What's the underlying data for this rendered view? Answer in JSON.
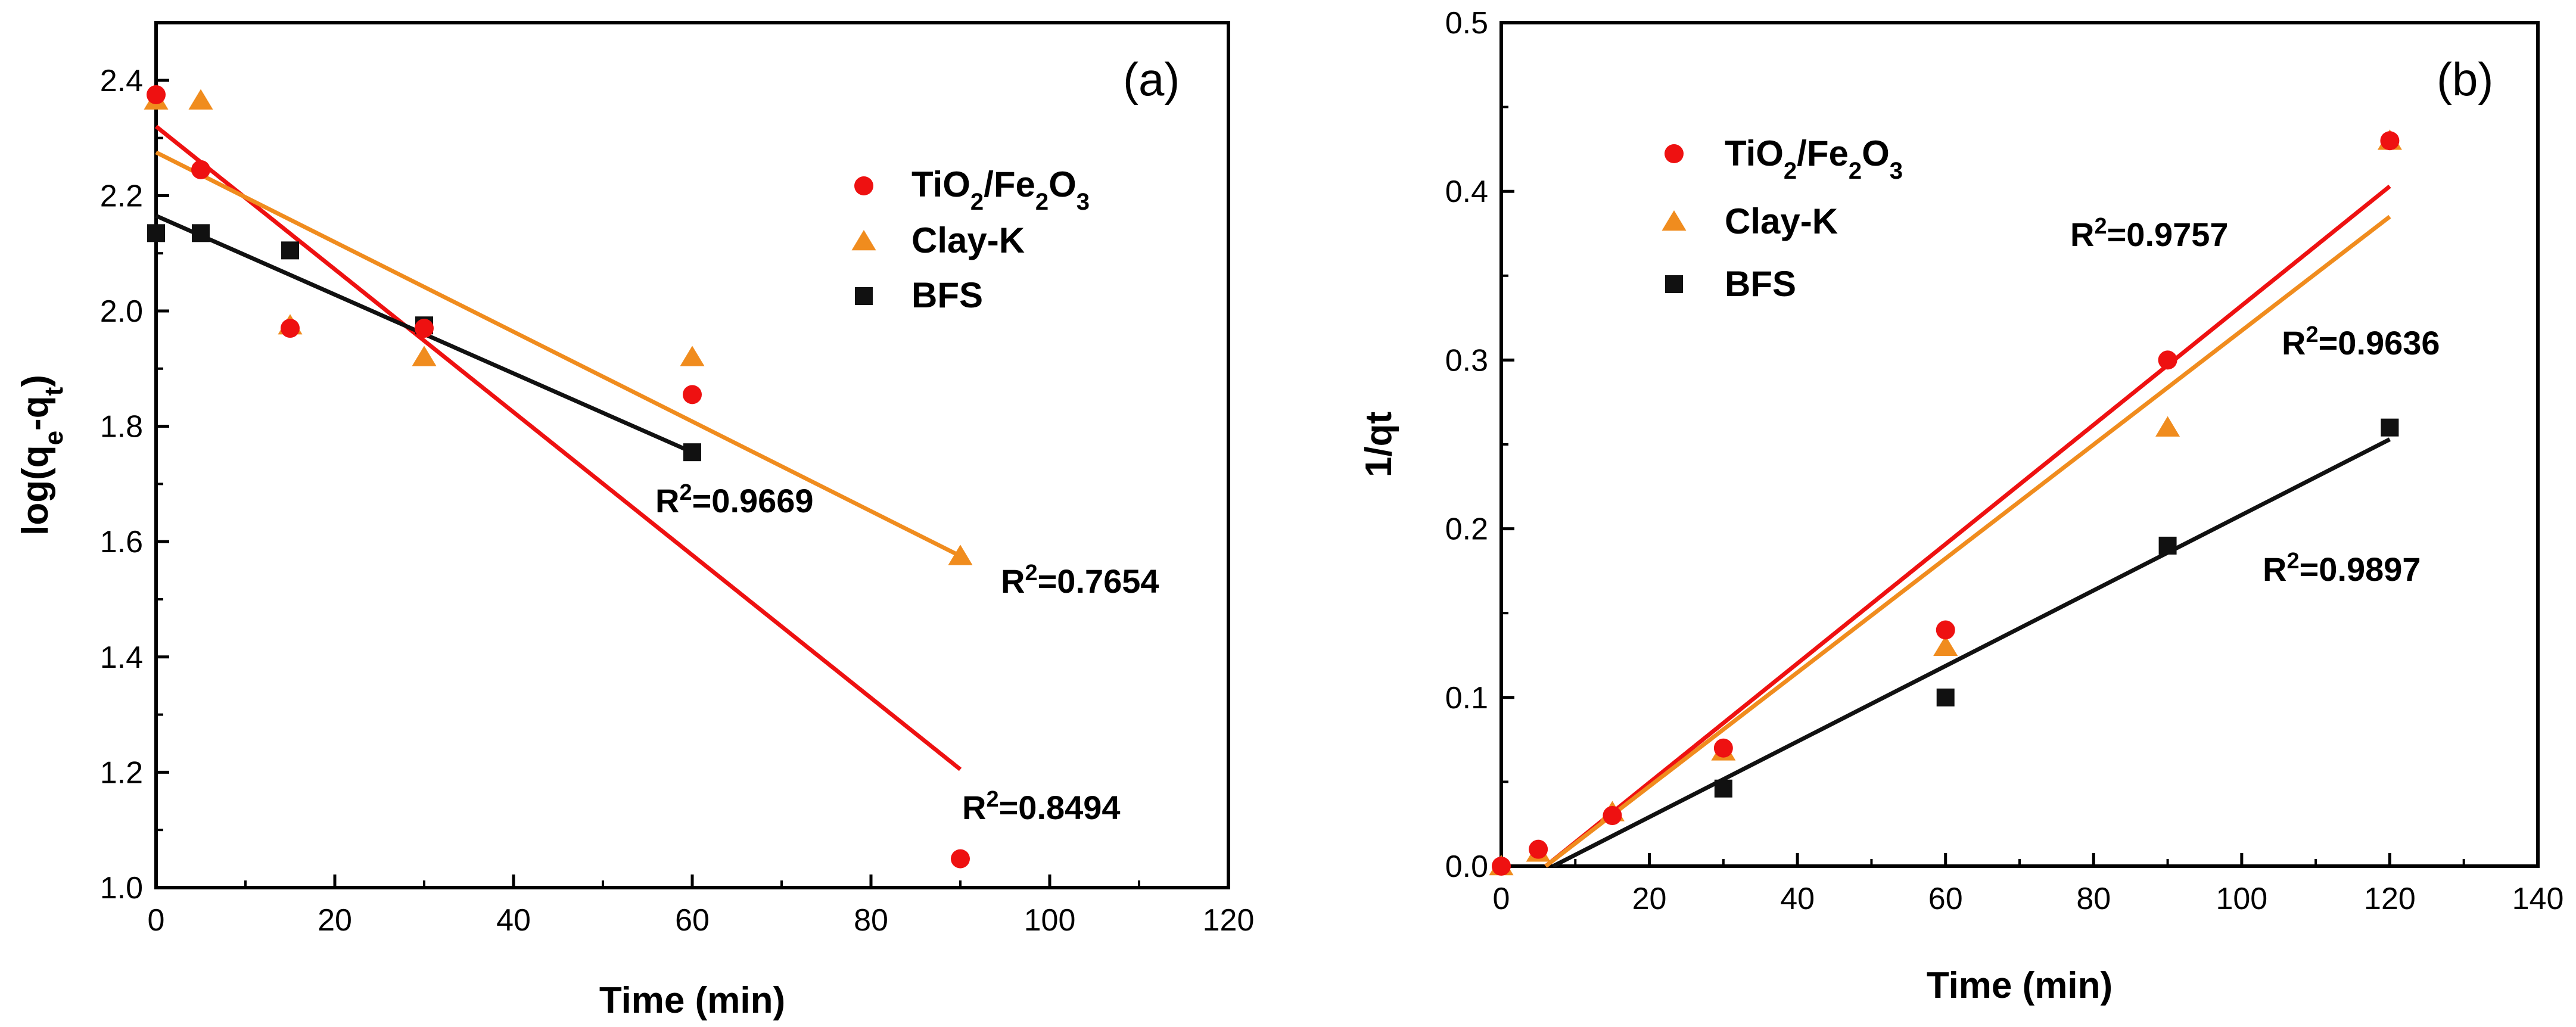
{
  "chart_data": [
    {
      "type": "scatter",
      "panel_label": "(a)",
      "xlabel": "Time (min)",
      "ylabel_parts": {
        "base": "log(q",
        "sub1": "e",
        "mid": "-q",
        "sub2": "t",
        "end": ")"
      },
      "xlim": [
        0,
        120
      ],
      "ylim": [
        1.0,
        2.5
      ],
      "xticks": [
        "0",
        "20",
        "40",
        "60",
        "80",
        "100",
        "120"
      ],
      "yticks": [
        "1.0",
        "1.2",
        "1.4",
        "1.6",
        "1.8",
        "2.0",
        "2.2",
        "2.4"
      ],
      "legend_position": "top-right",
      "series": [
        {
          "key": "tio2",
          "legend_parts": [
            "TiO",
            "2",
            "/Fe",
            "2",
            "O",
            "3"
          ],
          "color": "#ee1111",
          "marker": "circle",
          "points": [
            [
              0,
              2.375
            ],
            [
              5,
              2.245
            ],
            [
              15,
              1.97
            ],
            [
              30,
              1.97
            ],
            [
              60,
              1.855
            ],
            [
              90,
              1.05
            ]
          ],
          "fit": [
            [
              0,
              2.32
            ],
            [
              90,
              1.205
            ]
          ],
          "r2_label": "R²=0.8494",
          "r2_parts": {
            "pre": "R",
            "sup": "2",
            "post": "=0.8494"
          }
        },
        {
          "key": "clay",
          "legend": "Clay-K",
          "color": "#f08c1e",
          "marker": "triangle",
          "points": [
            [
              0,
              2.365
            ],
            [
              5,
              2.365
            ],
            [
              15,
              1.975
            ],
            [
              30,
              1.92
            ],
            [
              60,
              1.92
            ],
            [
              90,
              1.575
            ]
          ],
          "fit": [
            [
              0,
              2.275
            ],
            [
              90,
              1.575
            ]
          ],
          "r2_label": "R²=0.7654",
          "r2_parts": {
            "pre": "R",
            "sup": "2",
            "post": "=0.7654"
          }
        },
        {
          "key": "bfs",
          "legend": "BFS",
          "color": "#111111",
          "marker": "square",
          "points": [
            [
              0,
              2.135
            ],
            [
              5,
              2.135
            ],
            [
              15,
              2.105
            ],
            [
              30,
              1.975
            ],
            [
              60,
              1.755
            ]
          ],
          "fit": [
            [
              0,
              2.165
            ],
            [
              60,
              1.755
            ]
          ],
          "r2_label": "R²=0.9669",
          "r2_parts": {
            "pre": "R",
            "sup": "2",
            "post": "=0.9669"
          }
        }
      ]
    },
    {
      "type": "scatter",
      "panel_label": "(b)",
      "xlabel": "Time (min)",
      "ylabel": "1/qt",
      "xlim": [
        0,
        140
      ],
      "ylim": [
        0.0,
        0.5
      ],
      "xticks": [
        "0",
        "20",
        "40",
        "60",
        "80",
        "100",
        "120",
        "140"
      ],
      "yticks": [
        "0.0",
        "0.1",
        "0.2",
        "0.3",
        "0.4",
        "0.5"
      ],
      "legend_position": "top-left",
      "series": [
        {
          "key": "tio2",
          "legend_parts": [
            "TiO",
            "2",
            "/Fe",
            "2",
            "O",
            "3"
          ],
          "color": "#ee1111",
          "marker": "circle",
          "points": [
            [
              0,
              0.0
            ],
            [
              5,
              0.01
            ],
            [
              15,
              0.03
            ],
            [
              30,
              0.07
            ],
            [
              60,
              0.14
            ],
            [
              90,
              0.3
            ],
            [
              120,
              0.43
            ]
          ],
          "fit": [
            [
              6,
              0.0
            ],
            [
              120,
              0.403
            ]
          ],
          "r2_label": "R²=0.9757",
          "r2_parts": {
            "pre": "R",
            "sup": "2",
            "post": "=0.9757"
          }
        },
        {
          "key": "clay",
          "legend": "Clay-K",
          "color": "#f08c1e",
          "marker": "triangle",
          "points": [
            [
              0,
              0.0
            ],
            [
              5,
              0.008
            ],
            [
              15,
              0.032
            ],
            [
              30,
              0.068
            ],
            [
              60,
              0.13
            ],
            [
              90,
              0.26
            ],
            [
              120,
              0.43
            ]
          ],
          "fit": [
            [
              6,
              0.0
            ],
            [
              120,
              0.385
            ]
          ],
          "r2_label": "R²=0.9636",
          "r2_parts": {
            "pre": "R",
            "sup": "2",
            "post": "=0.9636"
          }
        },
        {
          "key": "bfs",
          "legend": "BFS",
          "color": "#111111",
          "marker": "square",
          "points": [
            [
              30,
              0.046
            ],
            [
              60,
              0.1
            ],
            [
              90,
              0.19
            ],
            [
              120,
              0.26
            ]
          ],
          "fit": [
            [
              7,
              0.0
            ],
            [
              120,
              0.253
            ]
          ],
          "r2_label": "R²=0.9897",
          "r2_parts": {
            "pre": "R",
            "sup": "2",
            "post": "=0.9897"
          }
        }
      ]
    }
  ]
}
